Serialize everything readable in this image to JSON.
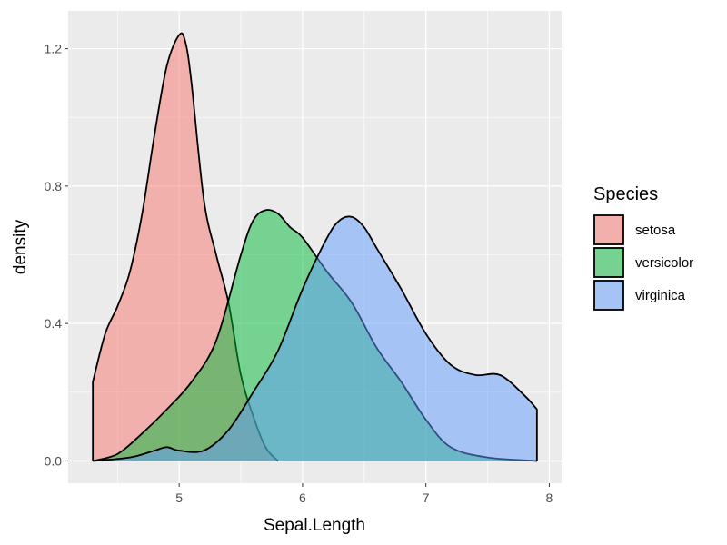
{
  "chart_data": {
    "type": "area",
    "subtype": "density",
    "xlabel": "Sepal.Length",
    "ylabel": "density",
    "xlim": [
      4.1,
      8.1
    ],
    "ylim": [
      -0.065,
      1.31
    ],
    "x_ticks": [
      5,
      6,
      7,
      8
    ],
    "x_tick_labels": [
      "5",
      "6",
      "7",
      "8"
    ],
    "y_ticks": [
      0.0,
      0.4,
      0.8,
      1.2
    ],
    "y_tick_labels": [
      "0.0",
      "0.4",
      "0.8",
      "1.2"
    ],
    "grid": true,
    "legend": {
      "title": "Species",
      "position": "right"
    },
    "series": [
      {
        "name": "setosa",
        "color": "#F8766D",
        "x": [
          4.3,
          4.4,
          4.5,
          4.6,
          4.7,
          4.8,
          4.9,
          5.0,
          5.05,
          5.1,
          5.2,
          5.3,
          5.4,
          5.5,
          5.6,
          5.7,
          5.8
        ],
        "y": [
          0.23,
          0.37,
          0.45,
          0.55,
          0.72,
          0.95,
          1.15,
          1.24,
          1.22,
          1.1,
          0.76,
          0.6,
          0.46,
          0.25,
          0.13,
          0.04,
          0.0
        ]
      },
      {
        "name": "versicolor",
        "color": "#00BA38",
        "x": [
          4.3,
          4.5,
          4.7,
          4.9,
          5.1,
          5.3,
          5.5,
          5.6,
          5.7,
          5.8,
          5.9,
          6.0,
          6.2,
          6.4,
          6.6,
          6.8,
          7.0,
          7.2,
          7.5,
          7.9
        ],
        "y": [
          0.0,
          0.02,
          0.08,
          0.15,
          0.23,
          0.35,
          0.6,
          0.7,
          0.73,
          0.72,
          0.68,
          0.65,
          0.55,
          0.46,
          0.33,
          0.23,
          0.12,
          0.04,
          0.01,
          0.0
        ]
      },
      {
        "name": "virginica",
        "color": "#619CFF",
        "x": [
          4.3,
          4.6,
          4.8,
          4.9,
          5.0,
          5.2,
          5.4,
          5.6,
          5.8,
          6.0,
          6.2,
          6.3,
          6.4,
          6.5,
          6.6,
          6.8,
          7.0,
          7.2,
          7.4,
          7.6,
          7.8,
          7.9
        ],
        "y": [
          0.0,
          0.01,
          0.03,
          0.04,
          0.03,
          0.03,
          0.09,
          0.2,
          0.32,
          0.5,
          0.65,
          0.7,
          0.71,
          0.68,
          0.62,
          0.5,
          0.37,
          0.28,
          0.25,
          0.25,
          0.19,
          0.15
        ]
      }
    ]
  }
}
